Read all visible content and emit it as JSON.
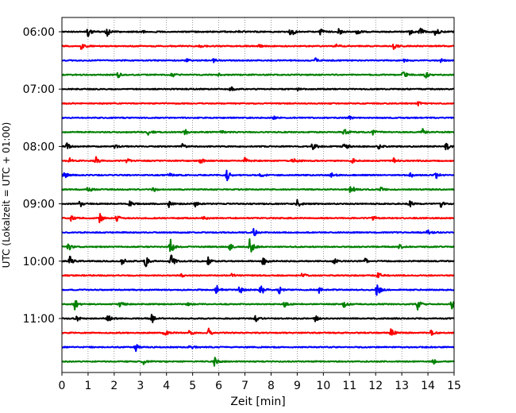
{
  "chart_data": {
    "type": "line",
    "title": "",
    "xlabel": "Zeit  [min]",
    "ylabel": "UTC (Lokalzeit = UTC + 01:00)",
    "xlim": [
      0,
      15
    ],
    "x_ticks": [
      0,
      1,
      2,
      3,
      4,
      5,
      6,
      7,
      8,
      9,
      10,
      11,
      12,
      13,
      14,
      15
    ],
    "x_tick_labels": [
      "0",
      "1",
      "2",
      "3",
      "4",
      "5",
      "6",
      "7",
      "8",
      "9",
      "10",
      "11",
      "12",
      "13",
      "14",
      "15"
    ],
    "y_tick_labels": [
      "06:00",
      "07:00",
      "08:00",
      "09:00",
      "10:00",
      "11:00"
    ],
    "row_minutes_each": 15,
    "colors": [
      "#000000",
      "#ff0000",
      "#0000ff",
      "#008000"
    ],
    "grid": "vertical-dotted",
    "series": [
      {
        "start": "06:00",
        "events": [
          [
            1.0,
            9
          ],
          [
            1.7,
            12
          ],
          [
            3.1,
            3
          ],
          [
            6.8,
            3
          ],
          [
            8.75,
            14
          ],
          [
            9.9,
            8
          ],
          [
            10.6,
            6
          ],
          [
            11.3,
            6
          ],
          [
            13.3,
            7
          ],
          [
            13.7,
            10
          ],
          [
            14.3,
            10
          ]
        ]
      },
      {
        "start": "06:15",
        "events": [
          [
            0.75,
            9
          ],
          [
            5.3,
            4
          ],
          [
            7.5,
            4
          ],
          [
            10.5,
            4
          ],
          [
            12.7,
            7
          ]
        ]
      },
      {
        "start": "06:30",
        "events": [
          [
            4.8,
            4
          ],
          [
            5.8,
            4
          ],
          [
            9.7,
            4
          ],
          [
            13.1,
            3
          ],
          [
            14.5,
            4
          ]
        ]
      },
      {
        "start": "06:45",
        "events": [
          [
            2.15,
            7
          ],
          [
            4.2,
            6
          ],
          [
            6.0,
            3
          ],
          [
            13.05,
            10
          ],
          [
            13.9,
            8
          ]
        ]
      },
      {
        "start": "07:00",
        "events": [
          [
            6.45,
            6
          ],
          [
            9.0,
            3
          ]
        ]
      },
      {
        "start": "07:15",
        "events": [
          [
            13.6,
            5
          ]
        ]
      },
      {
        "start": "07:30",
        "events": [
          [
            8.1,
            3
          ],
          [
            11.0,
            3
          ]
        ]
      },
      {
        "start": "07:45",
        "events": [
          [
            3.3,
            10
          ],
          [
            4.7,
            7
          ],
          [
            6.1,
            4
          ],
          [
            10.8,
            10
          ],
          [
            11.9,
            6
          ],
          [
            13.8,
            6
          ]
        ]
      },
      {
        "start": "08:00",
        "events": [
          [
            0.2,
            7
          ],
          [
            2.0,
            5
          ],
          [
            4.6,
            5
          ],
          [
            9.6,
            12
          ],
          [
            10.8,
            10
          ],
          [
            12.1,
            6
          ],
          [
            14.7,
            12
          ]
        ]
      },
      {
        "start": "08:15",
        "events": [
          [
            0.3,
            6
          ],
          [
            1.3,
            8
          ],
          [
            2.5,
            6
          ],
          [
            5.3,
            6
          ],
          [
            7.0,
            6
          ],
          [
            8.8,
            9
          ],
          [
            11.1,
            6
          ],
          [
            12.7,
            6
          ]
        ]
      },
      {
        "start": "08:30",
        "events": [
          [
            0.1,
            10
          ],
          [
            4.1,
            5
          ],
          [
            6.3,
            14
          ],
          [
            7.6,
            6
          ],
          [
            10.3,
            10
          ],
          [
            13.3,
            8
          ],
          [
            14.3,
            8
          ]
        ]
      },
      {
        "start": "08:45",
        "events": [
          [
            1.0,
            8
          ],
          [
            3.5,
            5
          ],
          [
            11.05,
            12
          ],
          [
            12.2,
            4
          ]
        ]
      },
      {
        "start": "09:00",
        "events": [
          [
            0.7,
            8
          ],
          [
            2.6,
            5
          ],
          [
            4.1,
            7
          ],
          [
            5.1,
            6
          ],
          [
            9.0,
            9
          ],
          [
            13.3,
            9
          ],
          [
            14.5,
            9
          ]
        ]
      },
      {
        "start": "09:15",
        "events": [
          [
            0.35,
            8
          ],
          [
            1.45,
            10
          ],
          [
            2.1,
            8
          ],
          [
            5.4,
            7
          ],
          [
            11.9,
            4
          ]
        ]
      },
      {
        "start": "09:30",
        "events": [
          [
            7.35,
            9
          ],
          [
            14.0,
            10
          ]
        ]
      },
      {
        "start": "09:45",
        "events": [
          [
            0.25,
            9
          ],
          [
            4.15,
            18
          ],
          [
            6.4,
            9
          ],
          [
            7.2,
            22
          ],
          [
            12.9,
            6
          ]
        ]
      },
      {
        "start": "10:00",
        "events": [
          [
            0.3,
            12
          ],
          [
            2.3,
            10
          ],
          [
            3.2,
            12
          ],
          [
            4.15,
            24
          ],
          [
            5.6,
            9
          ],
          [
            7.7,
            10
          ],
          [
            10.4,
            7
          ],
          [
            11.6,
            7
          ]
        ]
      },
      {
        "start": "10:15",
        "events": [
          [
            4.55,
            4
          ],
          [
            6.5,
            4
          ],
          [
            9.2,
            5
          ],
          [
            12.1,
            9
          ]
        ]
      },
      {
        "start": "10:30",
        "events": [
          [
            5.9,
            12
          ],
          [
            6.8,
            9
          ],
          [
            7.6,
            14
          ],
          [
            8.3,
            9
          ],
          [
            9.8,
            9
          ],
          [
            12.05,
            16
          ]
        ]
      },
      {
        "start": "10:45",
        "events": [
          [
            0.5,
            14
          ],
          [
            2.2,
            9
          ],
          [
            4.8,
            6
          ],
          [
            8.5,
            7
          ],
          [
            10.8,
            10
          ],
          [
            13.6,
            12
          ],
          [
            14.9,
            10
          ]
        ]
      },
      {
        "start": "11:00",
        "events": [
          [
            0.55,
            8
          ],
          [
            1.75,
            9
          ],
          [
            3.45,
            10
          ],
          [
            7.4,
            8
          ],
          [
            9.7,
            6
          ]
        ]
      },
      {
        "start": "11:15",
        "events": [
          [
            3.9,
            10
          ],
          [
            4.9,
            8
          ],
          [
            5.6,
            10
          ],
          [
            12.6,
            10
          ],
          [
            14.1,
            10
          ]
        ]
      },
      {
        "start": "11:30",
        "events": [
          [
            2.8,
            11
          ],
          [
            4.9,
            6
          ]
        ]
      },
      {
        "start": "11:45",
        "events": [
          [
            3.1,
            7
          ],
          [
            5.85,
            11
          ],
          [
            14.2,
            6
          ]
        ]
      }
    ]
  }
}
